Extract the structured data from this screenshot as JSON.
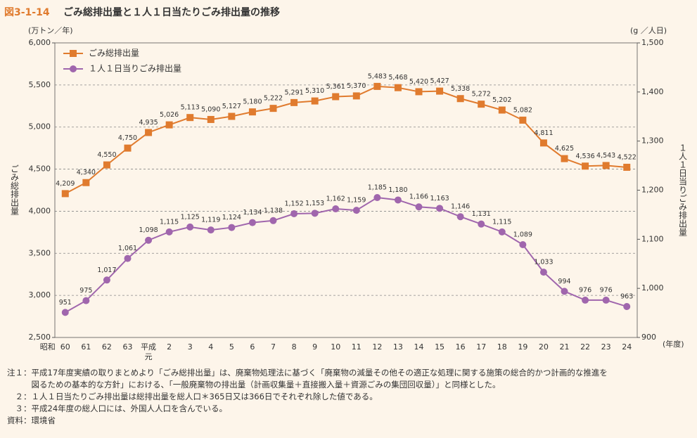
{
  "chart_data": {
    "type": "line",
    "figure_label": "図3-1-14",
    "title": "ごみ総排出量と１人１日当たりごみ排出量の推移",
    "y_unit": "(万トン／年)",
    "y2_unit": "(g ／人日)",
    "y_label": "ごみ総排出量",
    "y2_label": "１人１日当りごみ排出量",
    "x_unit": "(年度)",
    "era_labels": [
      {
        "text": "昭和",
        "index": 0
      },
      {
        "text": "平成",
        "index": 4
      }
    ],
    "categories": [
      "60",
      "61",
      "62",
      "63",
      "元",
      "2",
      "3",
      "4",
      "5",
      "6",
      "7",
      "8",
      "9",
      "10",
      "11",
      "12",
      "13",
      "14",
      "15",
      "16",
      "17",
      "18",
      "19",
      "20",
      "21",
      "22",
      "23",
      "24"
    ],
    "ylim": [
      2500,
      6000
    ],
    "yticks": [
      {
        "value": 2500,
        "label": "2,500"
      },
      {
        "value": 3000,
        "label": "3,000"
      },
      {
        "value": 3500,
        "label": "3,500"
      },
      {
        "value": 4000,
        "label": "4,000"
      },
      {
        "value": 4500,
        "label": "4,500"
      },
      {
        "value": 5000,
        "label": "5,000"
      },
      {
        "value": 5500,
        "label": "5,500"
      },
      {
        "value": 6000,
        "label": "6,000"
      }
    ],
    "y2lim": [
      900,
      1500
    ],
    "y2ticks": [
      900,
      {
        "value": 1000,
        "label": "1,000"
      },
      {
        "value": 1100,
        "label": "1,100"
      },
      {
        "value": 1200,
        "label": "1,200"
      },
      {
        "value": 1300,
        "label": "1,300"
      },
      {
        "value": 1400,
        "label": "1,400"
      },
      {
        "value": 1500,
        "label": "1,500"
      }
    ],
    "grid": true,
    "legend": "upper left",
    "series": [
      {
        "name": "ごみ総排出量",
        "color": "#e07b2e",
        "marker": "square",
        "values": [
          4209,
          4340,
          4550,
          4750,
          4935,
          5026,
          5113,
          5090,
          5127,
          5180,
          5222,
          5291,
          5310,
          5361,
          5370,
          5483,
          5468,
          5420,
          5427,
          5338,
          5272,
          5202,
          5082,
          4811,
          4625,
          4536,
          4543,
          4522
        ],
        "value_labels": [
          "4,209",
          "4,340",
          "4,550",
          "4,750",
          "4,935",
          "5,026",
          "5,113",
          "5,090",
          "5,127",
          "5,180",
          "5,222",
          "5,291",
          "5,310",
          "5,361",
          "5,370",
          "5,483",
          "5,468",
          "5,420",
          "5,427",
          "5,338",
          "5,272",
          "5,202",
          "5,082",
          "4,811",
          "4,625",
          "4,536",
          "4,543",
          "4,522"
        ]
      },
      {
        "name": "１人１日当りごみ排出量",
        "color": "#a066ad",
        "marker": "circle",
        "axis": "y2",
        "values": [
          951,
          975,
          1017,
          1061,
          1098,
          1115,
          1125,
          1119,
          1124,
          1134,
          1138,
          1152,
          1153,
          1162,
          1159,
          1185,
          1180,
          1166,
          1163,
          1146,
          1131,
          1115,
          1089,
          1033,
          994,
          976,
          976,
          963
        ],
        "value_labels": [
          "951",
          "975",
          "1,017",
          "1,061",
          "1,098",
          "1,115",
          "1,125",
          "1,119",
          "1,124",
          "1,134",
          "1,138",
          "1,152",
          "1,153",
          "1,162",
          "1,159",
          "1,185",
          "1,180",
          "1,166",
          "1,163",
          "1,146",
          "1,131",
          "1,115",
          "1,089",
          "1,033",
          "994",
          "976",
          "976",
          "963"
        ]
      }
    ]
  },
  "notes": [
    "注１：平成17年度実績の取りまとめより「ごみ総排出量」は、廃棄物処理法に基づく「廃棄物の減量その他その適正な処理に関する施策の総合的かつ計画的な推進を",
    "　　　図るための基本的な方針」における、「一般廃棄物の排出量（計画収集量＋直接搬入量＋資源ごみの集団回収量）」と同様とした。",
    "　２：１人１日当たりごみ排出量は総排出量を総人口＊365日又は366日でそれぞれ除した値である。",
    "　３：平成24年度の総人口には、外国人人口を含んでいる。",
    "資料：環境省"
  ]
}
